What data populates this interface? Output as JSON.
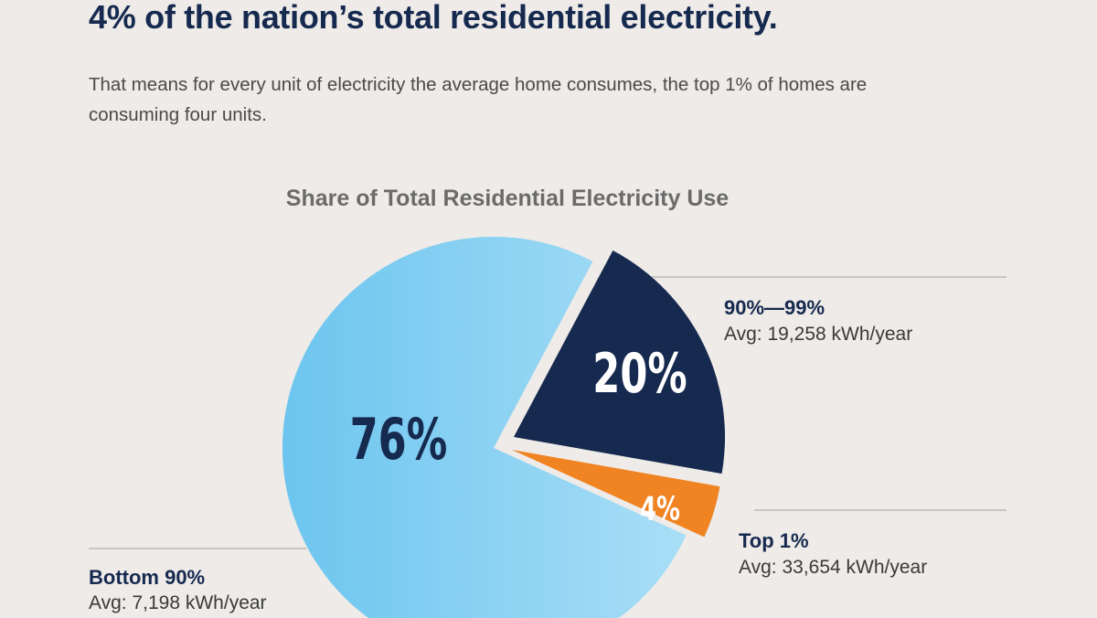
{
  "headline": "4% of the nation’s total residential electricity.",
  "subtitle": "That means for every unit of electricity the average home consumes, the top 1% of homes are consuming four units.",
  "chart_data": {
    "type": "pie",
    "title": "Share of Total Residential Electricity Use",
    "slices": [
      {
        "name": "Bottom 90%",
        "value": 76,
        "label": "76%",
        "avg": "Avg: 7,198 kWh/year",
        "color": "#8fd2f3",
        "label_color": "#16294f"
      },
      {
        "name": "90%—99%",
        "value": 20,
        "label": "20%",
        "avg": "Avg: 19,258 kWh/year",
        "color": "#16294f",
        "label_color": "#ffffff"
      },
      {
        "name": "Top 1%",
        "value": 4,
        "label": "4%",
        "avg": "Avg: 33,654 kWh/year",
        "color": "#f08423",
        "label_color": "#ffffff"
      }
    ]
  }
}
